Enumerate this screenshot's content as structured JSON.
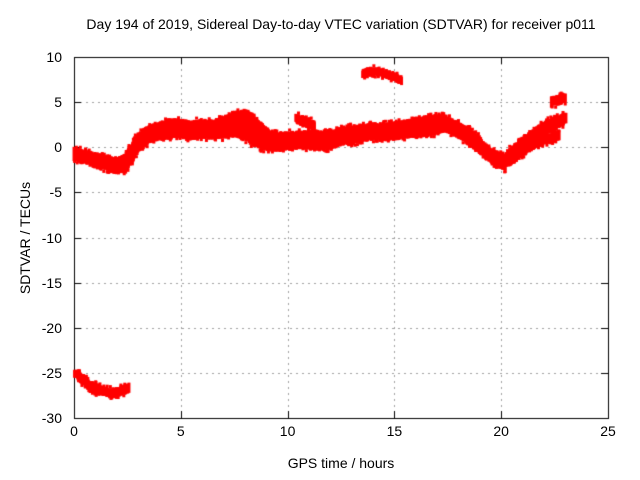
{
  "chart_data": {
    "type": "scatter",
    "title": "Day 194 of 2019, Sidereal Day-to-day VTEC variation (SDTVAR) for receiver p011",
    "xlabel": "GPS time / hours",
    "ylabel": "SDTVAR / TECUs",
    "xlim": [
      0,
      25
    ],
    "ylim": [
      -30,
      10
    ],
    "xticks": [
      0,
      5,
      10,
      15,
      20,
      25
    ],
    "yticks": [
      10,
      5,
      0,
      -5,
      -10,
      -15,
      -20,
      -25,
      -30
    ],
    "grid": true,
    "legend": "none",
    "marker": "small-red-square-dense-cloud",
    "marker_color": "#ff0000",
    "grid_color": "#a0a0a0",
    "axis_color": "#000000",
    "bands": [
      {
        "name": "main-diurnal-band",
        "x": [
          0.0,
          0.5,
          1.0,
          1.5,
          2.0,
          2.4,
          2.7,
          3.0,
          3.5,
          4.0,
          4.5,
          5.0,
          5.5,
          6.0,
          6.5,
          7.0,
          7.5,
          8.0,
          8.4,
          8.8,
          9.2,
          9.6,
          10.0,
          10.5,
          11.0,
          11.5,
          12.0,
          12.5,
          13.0,
          13.5,
          14.0,
          14.5,
          15.0,
          15.5,
          16.0,
          16.5,
          17.0,
          17.3,
          17.6,
          18.0,
          18.5,
          19.0,
          19.4,
          19.8,
          20.2
        ],
        "ylow": [
          -1.3,
          -1.6,
          -1.9,
          -2.3,
          -2.8,
          -2.6,
          -1.6,
          -0.3,
          0.7,
          1.0,
          1.1,
          1.2,
          1.0,
          1.2,
          1.1,
          1.2,
          1.4,
          1.0,
          0.4,
          -0.1,
          -0.2,
          -0.3,
          -0.1,
          0.0,
          0.0,
          -0.2,
          0.0,
          0.4,
          0.6,
          0.8,
          1.0,
          0.9,
          1.0,
          1.2,
          1.3,
          1.4,
          1.6,
          1.9,
          1.7,
          1.2,
          0.4,
          -0.5,
          -1.3,
          -2.0,
          -2.4
        ],
        "yhigh": [
          -0.2,
          -0.5,
          -0.8,
          -1.1,
          -1.4,
          -0.9,
          0.3,
          1.3,
          2.2,
          2.6,
          3.0,
          2.9,
          2.7,
          2.9,
          2.8,
          3.2,
          3.7,
          4.0,
          3.4,
          2.4,
          1.6,
          1.4,
          1.5,
          1.6,
          1.7,
          1.5,
          1.6,
          2.0,
          2.2,
          2.3,
          2.5,
          2.4,
          2.6,
          2.8,
          3.0,
          3.3,
          3.4,
          3.5,
          3.1,
          2.6,
          1.9,
          0.9,
          -0.1,
          -0.7,
          -1.0
        ]
      },
      {
        "name": "post-dip-upper-branch",
        "x": [
          20.2,
          20.6,
          21.0,
          21.4,
          21.8,
          22.2,
          22.6,
          23.0
        ],
        "ylow": [
          -2.0,
          -1.0,
          -0.2,
          0.5,
          1.1,
          1.7,
          2.3,
          2.8
        ],
        "yhigh": [
          -0.9,
          0.1,
          0.9,
          1.6,
          2.3,
          2.9,
          3.3,
          3.6
        ]
      },
      {
        "name": "post-dip-lower-branch",
        "x": [
          20.4,
          20.8,
          21.2,
          21.6,
          22.0,
          22.4,
          22.7
        ],
        "ylow": [
          -1.9,
          -1.2,
          -0.5,
          0.1,
          0.5,
          0.8,
          1.0
        ],
        "yhigh": [
          -1.2,
          -0.5,
          0.1,
          0.7,
          1.1,
          1.4,
          1.7
        ]
      },
      {
        "name": "low-outlier-curve",
        "x": [
          0.05,
          0.3,
          0.6,
          0.9,
          1.2,
          1.5,
          1.8,
          2.1,
          2.35,
          2.55
        ],
        "ylow": [
          -25.3,
          -25.9,
          -26.5,
          -27.0,
          -27.3,
          -27.4,
          -27.5,
          -27.4,
          -27.2,
          -27.0
        ],
        "yhigh": [
          -24.8,
          -25.2,
          -25.8,
          -26.3,
          -26.6,
          -26.8,
          -26.9,
          -26.8,
          -26.5,
          -26.3
        ]
      },
      {
        "name": "high-arc-14h",
        "x": [
          13.5,
          13.8,
          14.1,
          14.4,
          14.7,
          15.0,
          15.2,
          15.35
        ],
        "ylow": [
          7.9,
          8.1,
          8.2,
          8.0,
          7.8,
          7.5,
          7.3,
          7.1
        ],
        "yhigh": [
          8.4,
          8.6,
          8.6,
          8.5,
          8.2,
          8.0,
          7.8,
          7.6
        ]
      },
      {
        "name": "high-blob-22h",
        "x": [
          22.35,
          22.6,
          22.85,
          23.0
        ],
        "ylow": [
          4.9,
          4.8,
          5.0,
          5.1
        ],
        "yhigh": [
          5.4,
          5.5,
          5.8,
          5.7
        ]
      },
      {
        "name": "detached-blob-11h",
        "x": [
          10.4,
          10.7,
          11.0,
          11.3
        ],
        "ylow": [
          2.9,
          2.6,
          2.3,
          2.1
        ],
        "yhigh": [
          3.5,
          3.3,
          3.0,
          2.6
        ]
      }
    ]
  }
}
